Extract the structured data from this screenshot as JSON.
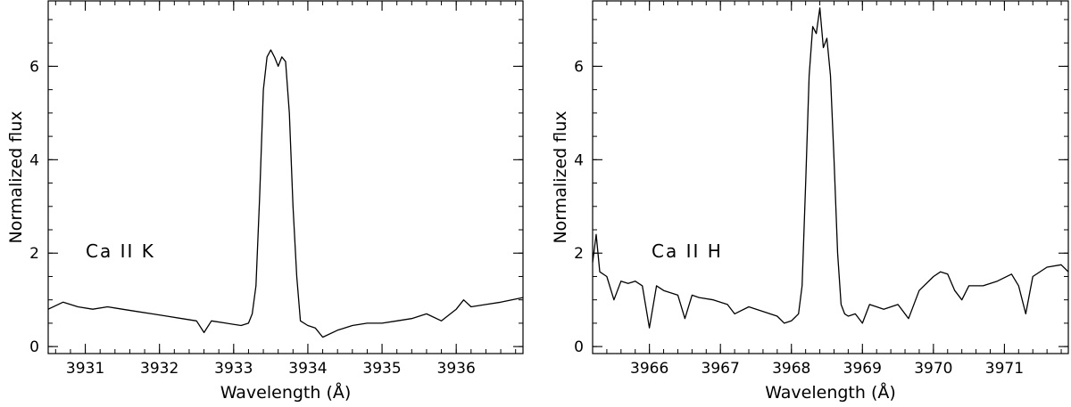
{
  "chart_data": [
    {
      "type": "line",
      "title": "",
      "xlabel": "Wavelength (Å)",
      "ylabel": "Normalized flux",
      "xlim": [
        3930.5,
        3936.9
      ],
      "ylim": [
        -0.15,
        7.4
      ],
      "xticks": [
        3931,
        3932,
        3933,
        3934,
        3935,
        3936
      ],
      "xtick_labels": [
        "3931",
        "3932",
        "3933",
        "3934",
        "3935",
        "3936"
      ],
      "yticks": [
        0,
        2,
        4,
        6
      ],
      "ytick_labels": [
        "0",
        "2",
        "4",
        "6"
      ],
      "grid": false,
      "annotation": "Ca II K",
      "series": [
        {
          "x": [
            3930.5,
            3930.7,
            3930.9,
            3931.1,
            3931.3,
            3931.5,
            3931.7,
            3931.9,
            3932.1,
            3932.3,
            3932.5,
            3932.6,
            3932.7,
            3932.9,
            3933.1,
            3933.2,
            3933.25,
            3933.3,
            3933.35,
            3933.4,
            3933.45,
            3933.5,
            3933.55,
            3933.6,
            3933.65,
            3933.7,
            3933.75,
            3933.8,
            3933.85,
            3933.9,
            3934.0,
            3934.1,
            3934.2,
            3934.4,
            3934.6,
            3934.8,
            3935.0,
            3935.2,
            3935.4,
            3935.6,
            3935.8,
            3936.0,
            3936.1,
            3936.2,
            3936.4,
            3936.6,
            3936.9
          ],
          "y": [
            0.8,
            0.95,
            0.85,
            0.8,
            0.85,
            0.8,
            0.75,
            0.7,
            0.65,
            0.6,
            0.55,
            0.3,
            0.55,
            0.5,
            0.45,
            0.5,
            0.7,
            1.3,
            3.2,
            5.5,
            6.2,
            6.35,
            6.2,
            6.0,
            6.2,
            6.1,
            5.0,
            3.0,
            1.5,
            0.55,
            0.45,
            0.4,
            0.2,
            0.35,
            0.45,
            0.5,
            0.5,
            0.55,
            0.6,
            0.7,
            0.55,
            0.8,
            1.0,
            0.85,
            0.9,
            0.95,
            1.05
          ]
        }
      ]
    },
    {
      "type": "line",
      "title": "",
      "xlabel": "Wavelength (Å)",
      "ylabel": "Normalized flux",
      "xlim": [
        3965.2,
        3971.9
      ],
      "ylim": [
        -0.15,
        7.4
      ],
      "xticks": [
        3966,
        3967,
        3968,
        3969,
        3970,
        3971
      ],
      "xtick_labels": [
        "3966",
        "3967",
        "3968",
        "3969",
        "3970",
        "3971"
      ],
      "yticks": [
        0,
        2,
        4,
        6
      ],
      "ytick_labels": [
        "0",
        "2",
        "4",
        "6"
      ],
      "grid": false,
      "annotation": "Ca II H",
      "series": [
        {
          "x": [
            3965.2,
            3965.25,
            3965.3,
            3965.4,
            3965.5,
            3965.6,
            3965.7,
            3965.8,
            3965.9,
            3966.0,
            3966.1,
            3966.2,
            3966.4,
            3966.5,
            3966.6,
            3966.7,
            3966.9,
            3967.1,
            3967.2,
            3967.4,
            3967.6,
            3967.8,
            3967.9,
            3968.0,
            3968.1,
            3968.15,
            3968.2,
            3968.25,
            3968.3,
            3968.35,
            3968.4,
            3968.45,
            3968.5,
            3968.55,
            3968.6,
            3968.65,
            3968.7,
            3968.75,
            3968.8,
            3968.9,
            3969.0,
            3969.1,
            3969.2,
            3969.3,
            3969.5,
            3969.65,
            3969.8,
            3970.0,
            3970.1,
            3970.2,
            3970.3,
            3970.4,
            3970.5,
            3970.7,
            3970.9,
            3971.1,
            3971.2,
            3971.3,
            3971.4,
            3971.6,
            3971.8,
            3971.9
          ],
          "y": [
            1.8,
            2.4,
            1.6,
            1.5,
            1.0,
            1.4,
            1.35,
            1.4,
            1.3,
            0.4,
            1.3,
            1.2,
            1.1,
            0.6,
            1.1,
            1.05,
            1.0,
            0.9,
            0.7,
            0.85,
            0.75,
            0.65,
            0.5,
            0.55,
            0.7,
            1.3,
            3.5,
            5.8,
            6.85,
            6.7,
            7.25,
            6.4,
            6.6,
            5.8,
            4.0,
            2.0,
            0.9,
            0.7,
            0.65,
            0.7,
            0.5,
            0.9,
            0.85,
            0.8,
            0.9,
            0.6,
            1.2,
            1.5,
            1.6,
            1.55,
            1.2,
            1.0,
            1.3,
            1.3,
            1.4,
            1.55,
            1.3,
            0.7,
            1.5,
            1.7,
            1.75,
            1.6
          ]
        }
      ]
    }
  ]
}
